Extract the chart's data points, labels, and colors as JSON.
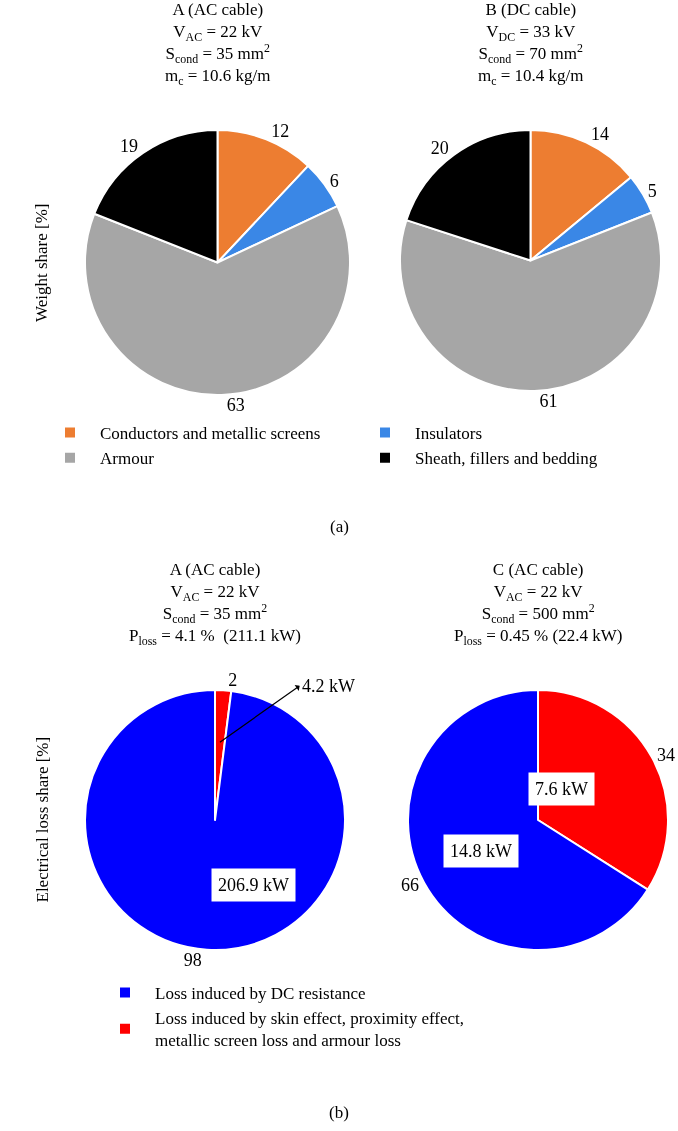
{
  "chart_data": [
    {
      "type": "pie",
      "title": "A (AC cable)",
      "subtitle": "V$_{AC}$ = 22 kV\nS$_{cond}$ = 35 mm$^{2}$\nm$_{c}$ = 10.6 kg/m",
      "ylabel": "Weight share [%]",
      "categories": [
        "Conductors and metallic screens",
        "Insulators",
        "Armour",
        "Sheath, fillers and bedding"
      ],
      "values": [
        12,
        6,
        63,
        19
      ],
      "colors": [
        "#ed7d31",
        "#3a87e6",
        "#a6a6a6",
        "#000000"
      ],
      "data_labels": true,
      "legend": "bottom",
      "annotations": [
        "(a)"
      ]
    },
    {
      "type": "pie",
      "title": "B (DC cable)",
      "subtitle": "V$_{DC}$ = 33 kV\nS$_{cond}$ = 70 mm$^{2}$\nm$_{c}$ = 10.4 kg/m",
      "categories": [
        null,
        null,
        null,
        null
      ],
      "values": [
        14,
        5,
        61,
        20
      ],
      "colors": [
        "#ed7d31",
        "#3a87e6",
        "#a6a6a6",
        "#000000"
      ],
      "data_labels": true
    },
    {
      "type": "pie",
      "title": "A (AC cable)",
      "subtitle": "V$_{AC}$ = 22 kV\nS$_{cond}$ = 35 mm$^{2}$\nP$_{loss}$ = 4.1 %  (211.1 kW)",
      "ylabel": "Electrical loss share [%]",
      "categories": [
        "Loss induced by skin effect, proximity effect, metallic screen loss and armour loss",
        "Loss induced by DC resistance"
      ],
      "values": [
        2,
        98
      ],
      "colors": [
        "#ff0000",
        "#0000ff"
      ],
      "data_labels": true,
      "legend": "bottom",
      "annotations": [
        {
          "text": "4.2 kW",
          "x": "Loss induced by skin effect, proximity effect, metallic screen loss and armour loss"
        },
        {
          "text": "206.9 kW",
          "x": "Loss induced by DC resistance"
        },
        "(b)"
      ]
    },
    {
      "type": "pie",
      "title": "C (AC cable)",
      "subtitle": "V$_{AC}$ = 22 kV\nS$_{cond}$ = 500 mm$^{2}$\nP$_{loss}$ = 0.45 % (22.4 kW)",
      "categories": [
        null,
        null
      ],
      "values": [
        34,
        66
      ],
      "colors": [
        "#ff0000",
        "#0000ff"
      ],
      "data_labels": true,
      "annotations": [
        {
          "text": "7.6 kW"
        },
        {
          "text": "14.8 kW"
        }
      ]
    }
  ]
}
